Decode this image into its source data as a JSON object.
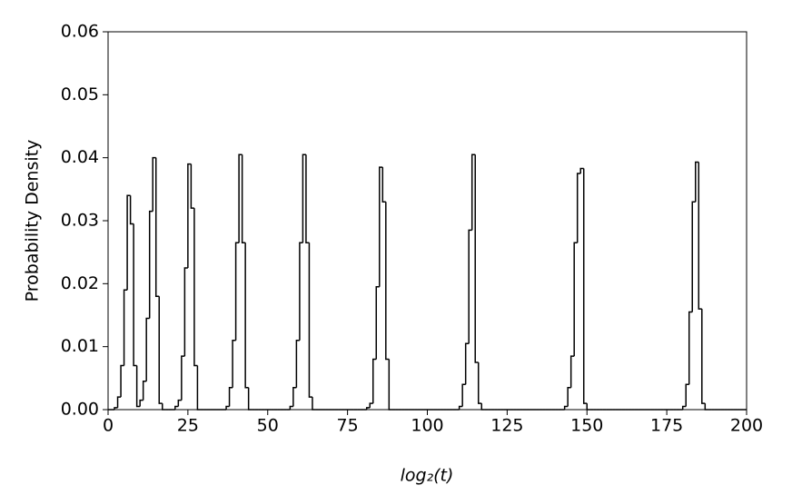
{
  "chart_data": {
    "type": "histogram",
    "xlabel": "log₂(t)",
    "ylabel": "Probability Density",
    "color": "#000000",
    "xlim": [
      0,
      200
    ],
    "ylim": [
      0,
      0.06
    ],
    "xticks": [
      0,
      25,
      50,
      75,
      100,
      125,
      150,
      175,
      200
    ],
    "yticks": [
      {
        "value": 0,
        "label": "0.00"
      },
      {
        "value": 0.01,
        "label": "0.01"
      },
      {
        "value": 0.02,
        "label": "0.02"
      },
      {
        "value": 0.03,
        "label": "0.03"
      },
      {
        "value": 0.04,
        "label": "0.04"
      },
      {
        "value": 0.05,
        "label": "0.05"
      },
      {
        "value": 0.06,
        "label": "0.06"
      }
    ],
    "bins": [
      0,
      1,
      2,
      3,
      4,
      5,
      6,
      7,
      8,
      9,
      10,
      11,
      12,
      13,
      14,
      15,
      16,
      17,
      18,
      19,
      20,
      21,
      22,
      23,
      24,
      25,
      26,
      27,
      28,
      29,
      30,
      31,
      32,
      33,
      34,
      35,
      36,
      37,
      38,
      39,
      40,
      41,
      42,
      43,
      44,
      45,
      46,
      47,
      48,
      49,
      50,
      51,
      52,
      53,
      54,
      55,
      56,
      57,
      58,
      59,
      60,
      61,
      62,
      63,
      64,
      65,
      66,
      67,
      68,
      69,
      70,
      71,
      72,
      73,
      74,
      75,
      76,
      77,
      78,
      79,
      80,
      81,
      82,
      83,
      84,
      85,
      86,
      87,
      88,
      89,
      90,
      91,
      92,
      93,
      94,
      95,
      96,
      97,
      98,
      99,
      100,
      101,
      102,
      103,
      104,
      105,
      106,
      107,
      108,
      109,
      110,
      111,
      112,
      113,
      114,
      115,
      116,
      117,
      118,
      119,
      120,
      121,
      122,
      123,
      124,
      125,
      126,
      127,
      128,
      129,
      130,
      131,
      132,
      133,
      134,
      135,
      136,
      137,
      138,
      139,
      140,
      141,
      142,
      143,
      144,
      145,
      146,
      147,
      148,
      149,
      150,
      151,
      152,
      153,
      154,
      155,
      156,
      157,
      158,
      159,
      160,
      161,
      162,
      163,
      164,
      165,
      166,
      167,
      168,
      169,
      170,
      171,
      172,
      173,
      174,
      175,
      176,
      177,
      178,
      179,
      180,
      181,
      182,
      183,
      184,
      185,
      186,
      187,
      188,
      189,
      190,
      191,
      192,
      193,
      194,
      195,
      196,
      197,
      198,
      199,
      200
    ],
    "values": [
      0,
      0,
      0.0003,
      0.002,
      0.007,
      0.019,
      0.034,
      0.0295,
      0.007,
      0.0005,
      0.0015,
      0.0045,
      0.0145,
      0.0315,
      0.04,
      0.018,
      0.001,
      0,
      0,
      0,
      0,
      0.0005,
      0.0015,
      0.0085,
      0.0225,
      0.039,
      0.032,
      0.007,
      0,
      0,
      0,
      0,
      0,
      0,
      0,
      0,
      0,
      0.0005,
      0.0035,
      0.011,
      0.0265,
      0.0405,
      0.0265,
      0.0035,
      0,
      0,
      0,
      0,
      0,
      0,
      0,
      0,
      0,
      0,
      0,
      0,
      0,
      0.0005,
      0.0035,
      0.011,
      0.0265,
      0.0405,
      0.0265,
      0.002,
      0,
      0,
      0,
      0,
      0,
      0,
      0,
      0,
      0,
      0,
      0,
      0,
      0,
      0,
      0,
      0,
      0,
      0.0003,
      0.001,
      0.008,
      0.0195,
      0.0385,
      0.033,
      0.008,
      0,
      0,
      0,
      0,
      0,
      0,
      0,
      0,
      0,
      0,
      0,
      0,
      0,
      0,
      0,
      0,
      0,
      0,
      0,
      0,
      0,
      0,
      0.0005,
      0.004,
      0.0105,
      0.0285,
      0.0405,
      0.0075,
      0.001,
      0,
      0,
      0,
      0,
      0,
      0,
      0,
      0,
      0,
      0,
      0,
      0,
      0,
      0,
      0,
      0,
      0,
      0,
      0,
      0,
      0,
      0,
      0,
      0,
      0,
      0,
      0.0005,
      0.0035,
      0.0085,
      0.0265,
      0.0375,
      0.0383,
      0.001,
      0,
      0,
      0,
      0,
      0,
      0,
      0,
      0,
      0,
      0,
      0,
      0,
      0,
      0,
      0,
      0,
      0,
      0,
      0,
      0,
      0,
      0,
      0,
      0,
      0,
      0,
      0,
      0,
      0,
      0,
      0.0005,
      0.004,
      0.0155,
      0.033,
      0.0393,
      0.016,
      0.001,
      0,
      0,
      0,
      0,
      0,
      0,
      0,
      0,
      0,
      0,
      0,
      0,
      0
    ]
  }
}
